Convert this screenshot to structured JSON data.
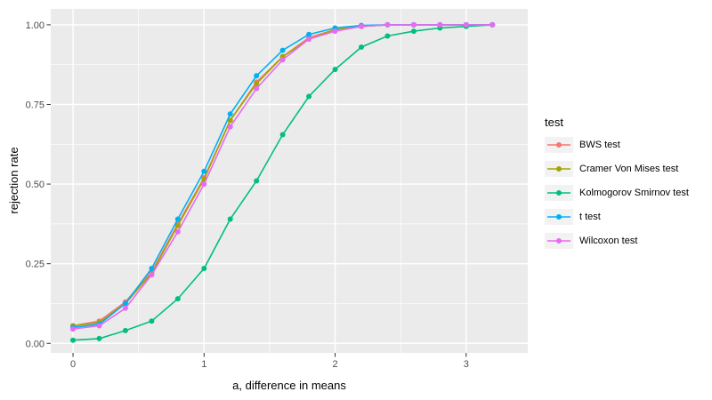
{
  "figure": {
    "background": "#FFFFFF",
    "panel_bg": "#EBEBEB",
    "grid_color": "#FFFFFF",
    "tick_mark_color": "#333333",
    "axis_text_color": "#4D4D4D",
    "axis_title_color": "#000000",
    "legend_key_bg": "#F2F2F2"
  },
  "chart_data": {
    "type": "line",
    "title": "",
    "xlabel": "a, difference in means",
    "ylabel": "rejection rate",
    "legend_title": "test",
    "legend_position": "right",
    "grid": true,
    "xlim": [
      -0.17,
      3.47
    ],
    "ylim": [
      -0.03,
      1.05
    ],
    "x_ticks": [
      0,
      1,
      2,
      3
    ],
    "x_tick_labels": [
      "0",
      "1",
      "2",
      "3"
    ],
    "x_minor_ticks": [
      0.5,
      1.5,
      2.5
    ],
    "y_ticks": [
      0,
      0.25,
      0.5,
      0.75,
      1.0
    ],
    "y_tick_labels": [
      "0.00",
      "0.25",
      "0.50",
      "0.75",
      "1.00"
    ],
    "y_minor_ticks": [
      0.125,
      0.375,
      0.625,
      0.875
    ],
    "x": [
      0,
      0.2,
      0.4,
      0.6,
      0.8,
      1.0,
      1.2,
      1.4,
      1.6,
      1.8,
      2.0,
      2.2,
      2.4,
      2.6,
      2.8,
      3.0,
      3.2
    ],
    "series": [
      {
        "name": "BWS test",
        "color": "#F8766D",
        "values": [
          0.055,
          0.07,
          0.13,
          0.225,
          0.375,
          0.52,
          0.7,
          0.82,
          0.9,
          0.96,
          0.985,
          0.995,
          1.0,
          1.0,
          1.0,
          1.0,
          1.0
        ]
      },
      {
        "name": "Cramer Von Mises test",
        "color": "#A3A500",
        "values": [
          0.055,
          0.065,
          0.125,
          0.22,
          0.37,
          0.515,
          0.7,
          0.815,
          0.9,
          0.955,
          0.985,
          0.995,
          1.0,
          1.0,
          1.0,
          1.0,
          1.0
        ]
      },
      {
        "name": "Kolmogorov Smirnov test",
        "color": "#00BF7D",
        "values": [
          0.01,
          0.015,
          0.04,
          0.07,
          0.14,
          0.235,
          0.39,
          0.51,
          0.655,
          0.775,
          0.86,
          0.93,
          0.965,
          0.98,
          0.99,
          0.995,
          1.0
        ]
      },
      {
        "name": "t test",
        "color": "#00B0F6",
        "values": [
          0.05,
          0.06,
          0.125,
          0.235,
          0.39,
          0.54,
          0.72,
          0.84,
          0.92,
          0.97,
          0.99,
          0.998,
          1.0,
          1.0,
          1.0,
          1.0,
          1.0
        ]
      },
      {
        "name": "Wilcoxon test",
        "color": "#E76BF3",
        "values": [
          0.045,
          0.055,
          0.11,
          0.215,
          0.35,
          0.5,
          0.68,
          0.8,
          0.89,
          0.955,
          0.98,
          0.995,
          1.0,
          1.0,
          1.0,
          1.0,
          1.0
        ]
      }
    ]
  }
}
